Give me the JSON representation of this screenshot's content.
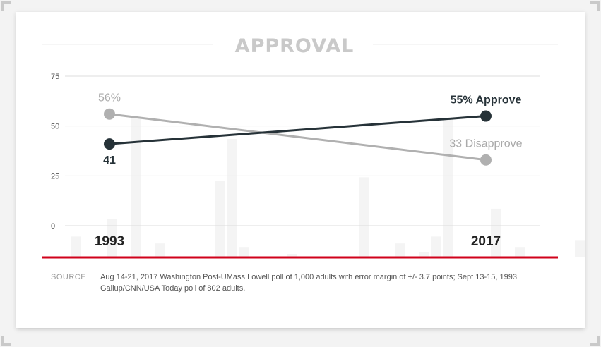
{
  "chart_data": {
    "type": "line",
    "title": "APPROVAL",
    "x": [
      "1993",
      "2017"
    ],
    "yticks": [
      0,
      25,
      50,
      75
    ],
    "ylim": [
      0,
      75
    ],
    "grid": true,
    "series": [
      {
        "key": "approve",
        "values": [
          41,
          55
        ],
        "labels": [
          "41",
          "55% Approve"
        ],
        "color": "#263238"
      },
      {
        "key": "disapprove",
        "values": [
          56,
          33
        ],
        "labels": [
          "56%",
          "33 Disapprove"
        ],
        "color": "#b0b0b0"
      }
    ],
    "background_bars": [
      12,
      0,
      0,
      22,
      0,
      80,
      0,
      8,
      0,
      0,
      0,
      0,
      44,
      68,
      6,
      0,
      0,
      0,
      2,
      0,
      0,
      0,
      0,
      0,
      46,
      0,
      0,
      8,
      0,
      3,
      12,
      80,
      0,
      0,
      0,
      28,
      0,
      6,
      0,
      0,
      0,
      0,
      10,
      0,
      0,
      72
    ]
  },
  "colors": {
    "accent_rule": "#d0021b",
    "grid": "#dddddd"
  },
  "source": {
    "label": "SOURCE",
    "text": "Aug 14-21, 2017 Washington Post-UMass Lowell poll of 1,000 adults with error margin of +/- 3.7 points; Sept 13-15, 1993 Gallup/CNN/USA Today poll of 802 adults."
  }
}
